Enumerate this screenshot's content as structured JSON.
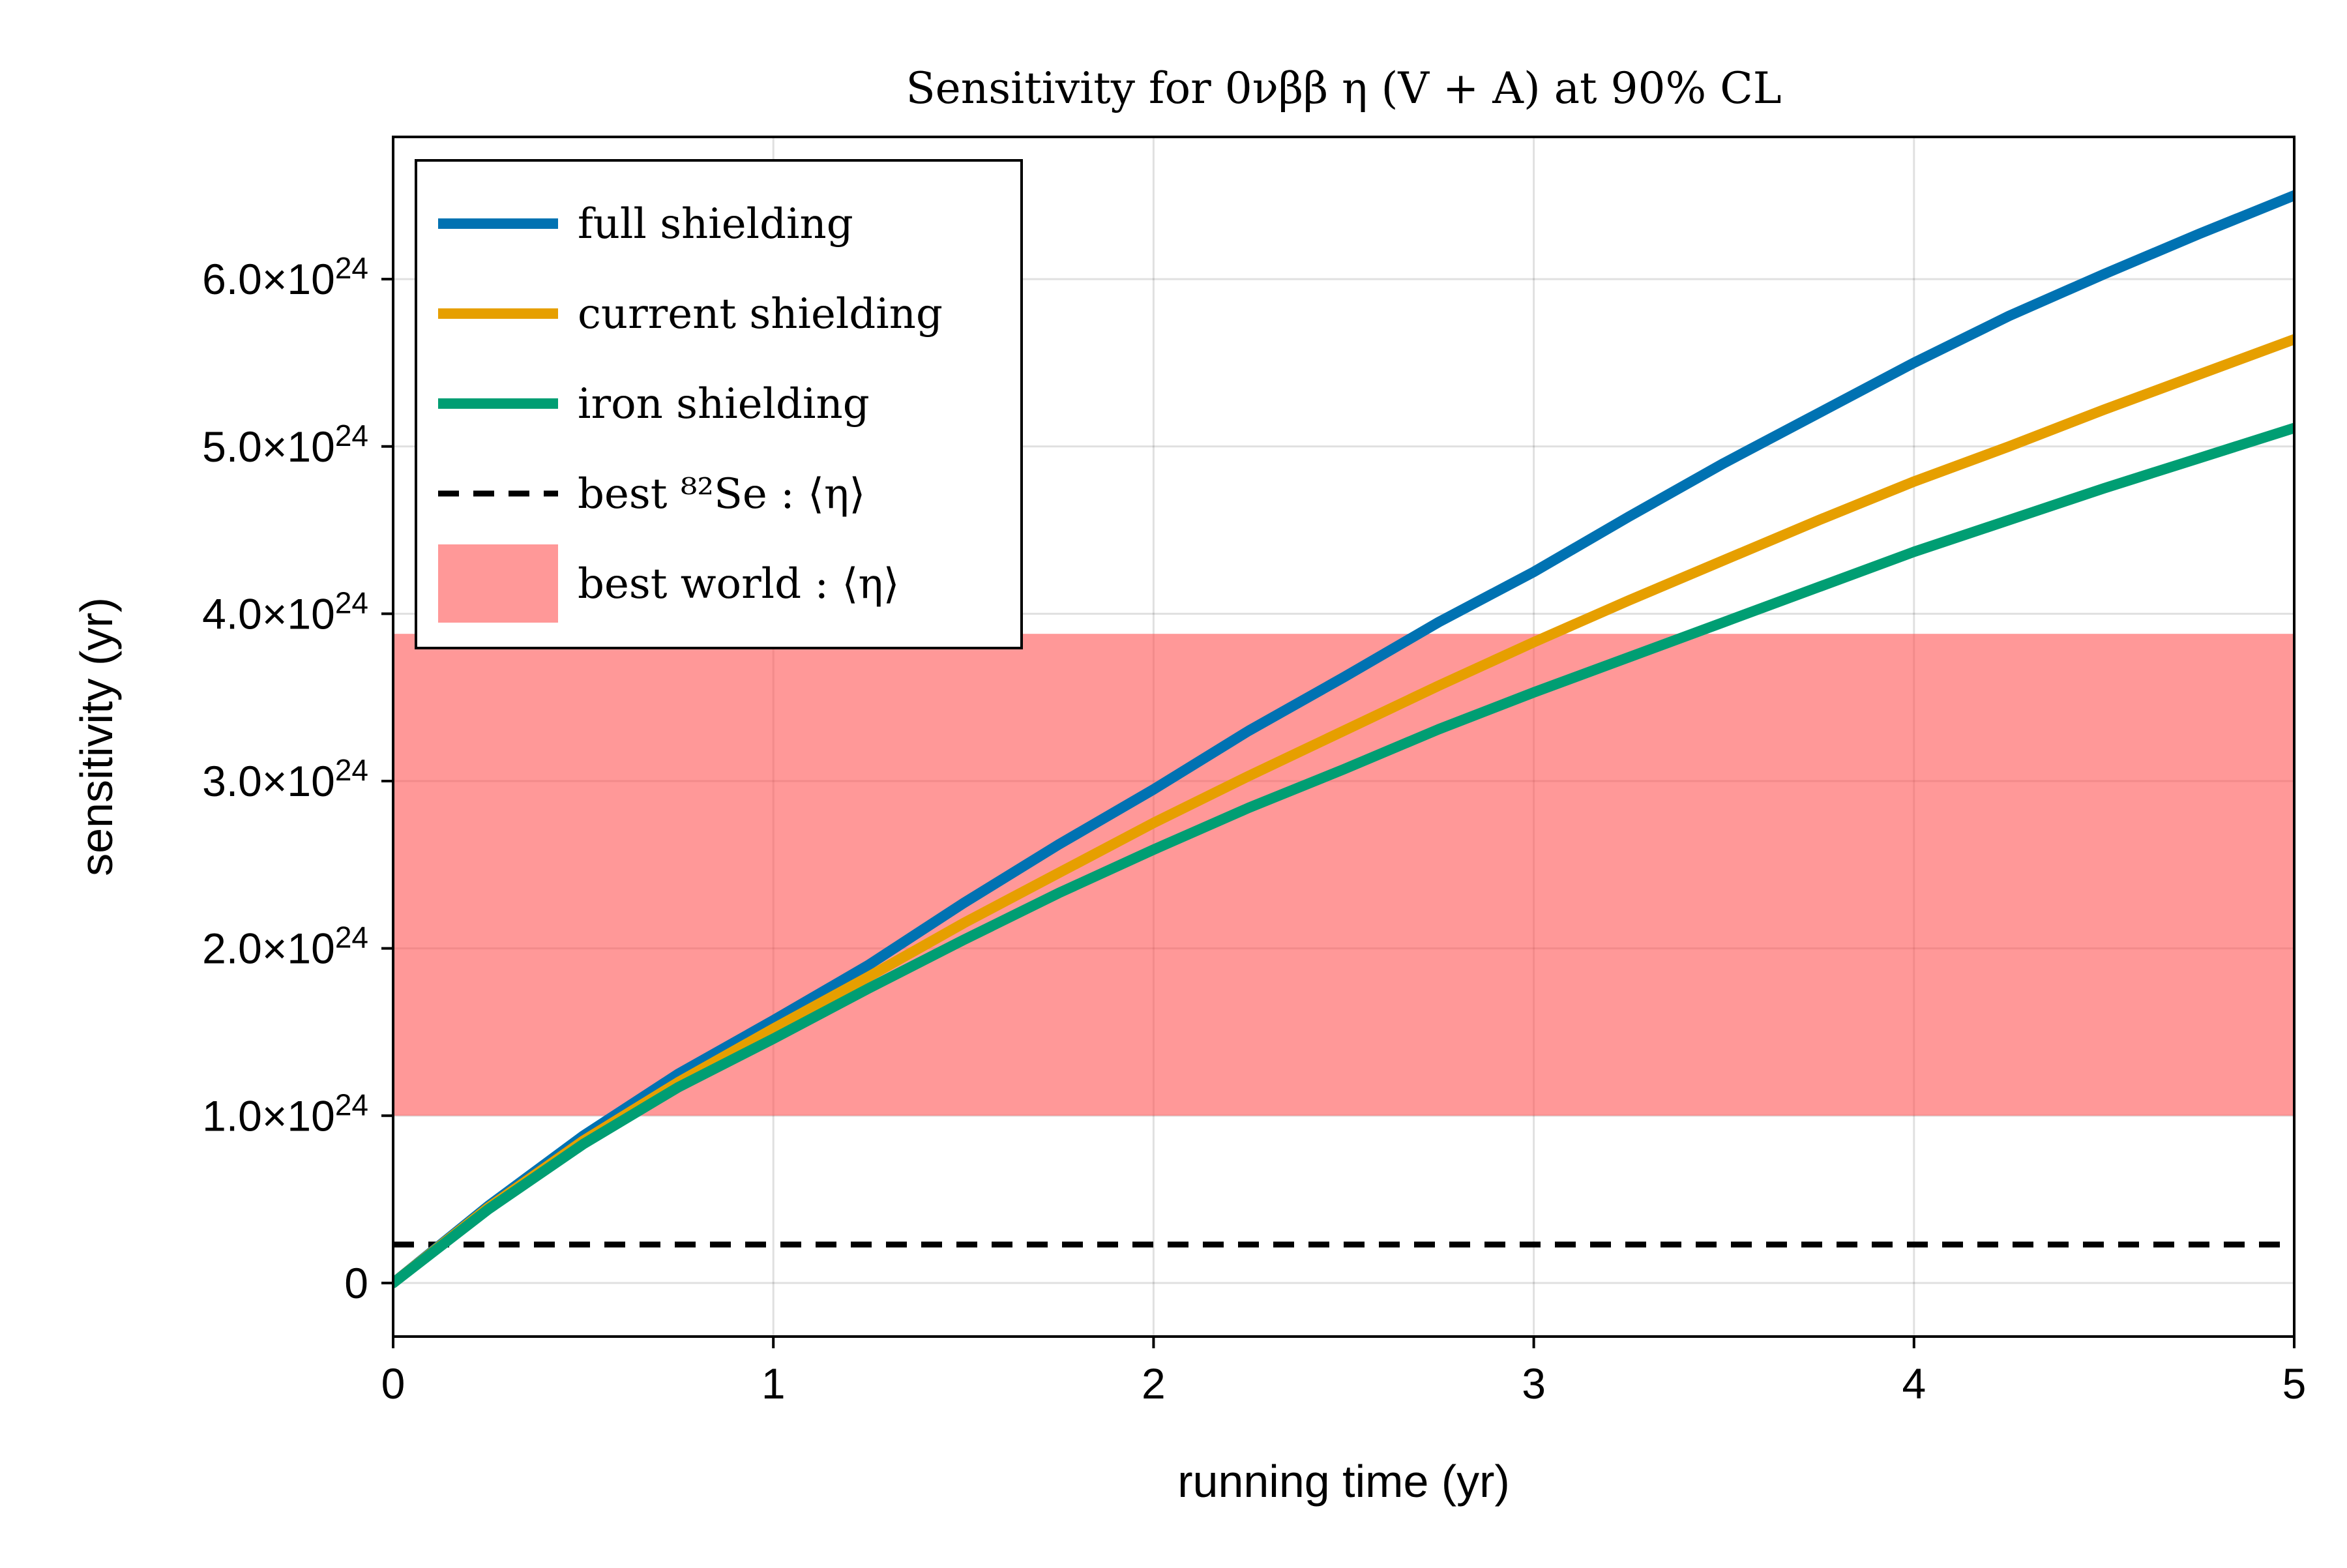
{
  "chart_data": {
    "type": "line",
    "title": "Sensitivity for 0νββ η (V + A) at 90% CL",
    "xlabel": "running time (yr)",
    "ylabel": "sensitivity (yr)",
    "xlim": [
      0,
      5
    ],
    "ylim": [
      -3.2e+23,
      6.85e+24
    ],
    "x_ticks": [
      0,
      1,
      2,
      3,
      4,
      5
    ],
    "x_tick_labels": [
      "0",
      "1",
      "2",
      "3",
      "4",
      "5"
    ],
    "y_ticks": [
      0,
      1e+24,
      2e+24,
      3e+24,
      4e+24,
      5e+24,
      6e+24
    ],
    "y_tick_mantissas": [
      "0",
      "1.0",
      "2.0",
      "3.0",
      "4.0",
      "5.0",
      "6.0"
    ],
    "y_tick_base": "×10",
    "y_tick_exponent": "24",
    "grid": true,
    "legend_position": "top-left",
    "x": [
      0,
      0.25,
      0.5,
      0.75,
      1,
      1.25,
      1.5,
      1.75,
      2,
      2.25,
      2.5,
      2.75,
      3,
      3.25,
      3.5,
      3.75,
      4,
      4.25,
      4.5,
      4.75,
      5
    ],
    "series": [
      {
        "name": "full shielding",
        "color": "#0072b2",
        "values": [
          0,
          4.6e+23,
          8.8e+23,
          1.25e+24,
          1.57e+24,
          1.9e+24,
          2.27e+24,
          2.62e+24,
          2.95e+24,
          3.3e+24,
          3.62e+24,
          3.95e+24,
          4.25e+24,
          4.58e+24,
          4.9e+24,
          5.2e+24,
          5.5e+24,
          5.78e+24,
          6.03e+24,
          6.27e+24,
          6.5e+24
        ]
      },
      {
        "name": "current shielding",
        "color": "#e69f00",
        "values": [
          0,
          4.5e+23,
          8.5e+23,
          1.2e+24,
          1.52e+24,
          1.83e+24,
          2.15e+24,
          2.45e+24,
          2.75e+24,
          3.03e+24,
          3.3e+24,
          3.57e+24,
          3.83e+24,
          4.08e+24,
          4.32e+24,
          4.56e+24,
          4.79e+24,
          5e+24,
          5.22e+24,
          5.43e+24,
          5.64e+24
        ]
      },
      {
        "name": "iron shielding",
        "color": "#009e73",
        "values": [
          0,
          4.4e+23,
          8.3e+23,
          1.17e+24,
          1.46e+24,
          1.76e+24,
          2.05e+24,
          2.33e+24,
          2.59e+24,
          2.84e+24,
          3.07e+24,
          3.31e+24,
          3.53e+24,
          3.74e+24,
          3.95e+24,
          4.16e+24,
          4.37e+24,
          4.56e+24,
          4.75e+24,
          4.93e+24,
          5.11e+24
        ]
      }
    ],
    "hlines": [
      {
        "name": "best ⁸²Se : ⟨η⟩",
        "y": 2.3e+23,
        "color": "#000000",
        "style": "dashed"
      }
    ],
    "bands": [
      {
        "name": "best world : ⟨η⟩",
        "ymin": 1e+24,
        "ymax": 3.88e+24,
        "color": "#ff4d4d",
        "opacity": 0.58
      }
    ],
    "legend": [
      {
        "label": "full shielding",
        "kind": "line",
        "color": "#0072b2"
      },
      {
        "label": "current shielding",
        "kind": "line",
        "color": "#e69f00"
      },
      {
        "label": "iron shielding",
        "kind": "line",
        "color": "#009e73"
      },
      {
        "label": "best ⁸²Se : ⟨η⟩",
        "kind": "dashed",
        "color": "#000000"
      },
      {
        "label": "best world : ⟨η⟩",
        "kind": "patch",
        "color": "#ff4d4d"
      }
    ]
  }
}
